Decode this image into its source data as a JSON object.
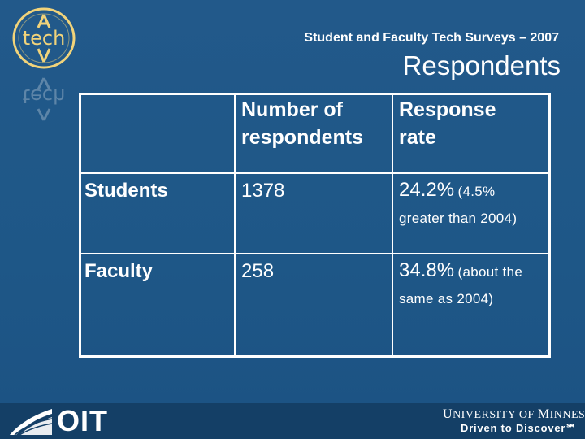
{
  "header": {
    "subtitle": "Student and Faculty Tech Surveys – 2007",
    "title": "Respondents"
  },
  "logo": {
    "text": "tech",
    "icon": "tech-logo-icon"
  },
  "table": {
    "columns": [
      "",
      "Number of respondents",
      "Response rate"
    ],
    "column_lines": [
      [
        "Number of",
        "respondents"
      ],
      [
        "Response",
        "rate"
      ]
    ],
    "rows": [
      {
        "label": "Students",
        "count": "1378",
        "rate": "24.2%",
        "note_a": "(4.5%",
        "note_b": "greater than 2004)"
      },
      {
        "label": "Faculty",
        "count": "258",
        "rate": "34.8%",
        "note_a": "(about the",
        "note_b": "same as 2004)"
      }
    ]
  },
  "footer": {
    "oit": "OIT",
    "umn_line1_a": "U",
    "umn_line1_b": "NIVERSITY OF ",
    "umn_line1_c": "M",
    "umn_line1_d": "INNESOTA",
    "umn_line2": "Driven to Discover℠",
    "colors": {
      "background": "#1f5a8c",
      "footer": "#143f66",
      "logo_gold": "#f1d37a"
    }
  }
}
